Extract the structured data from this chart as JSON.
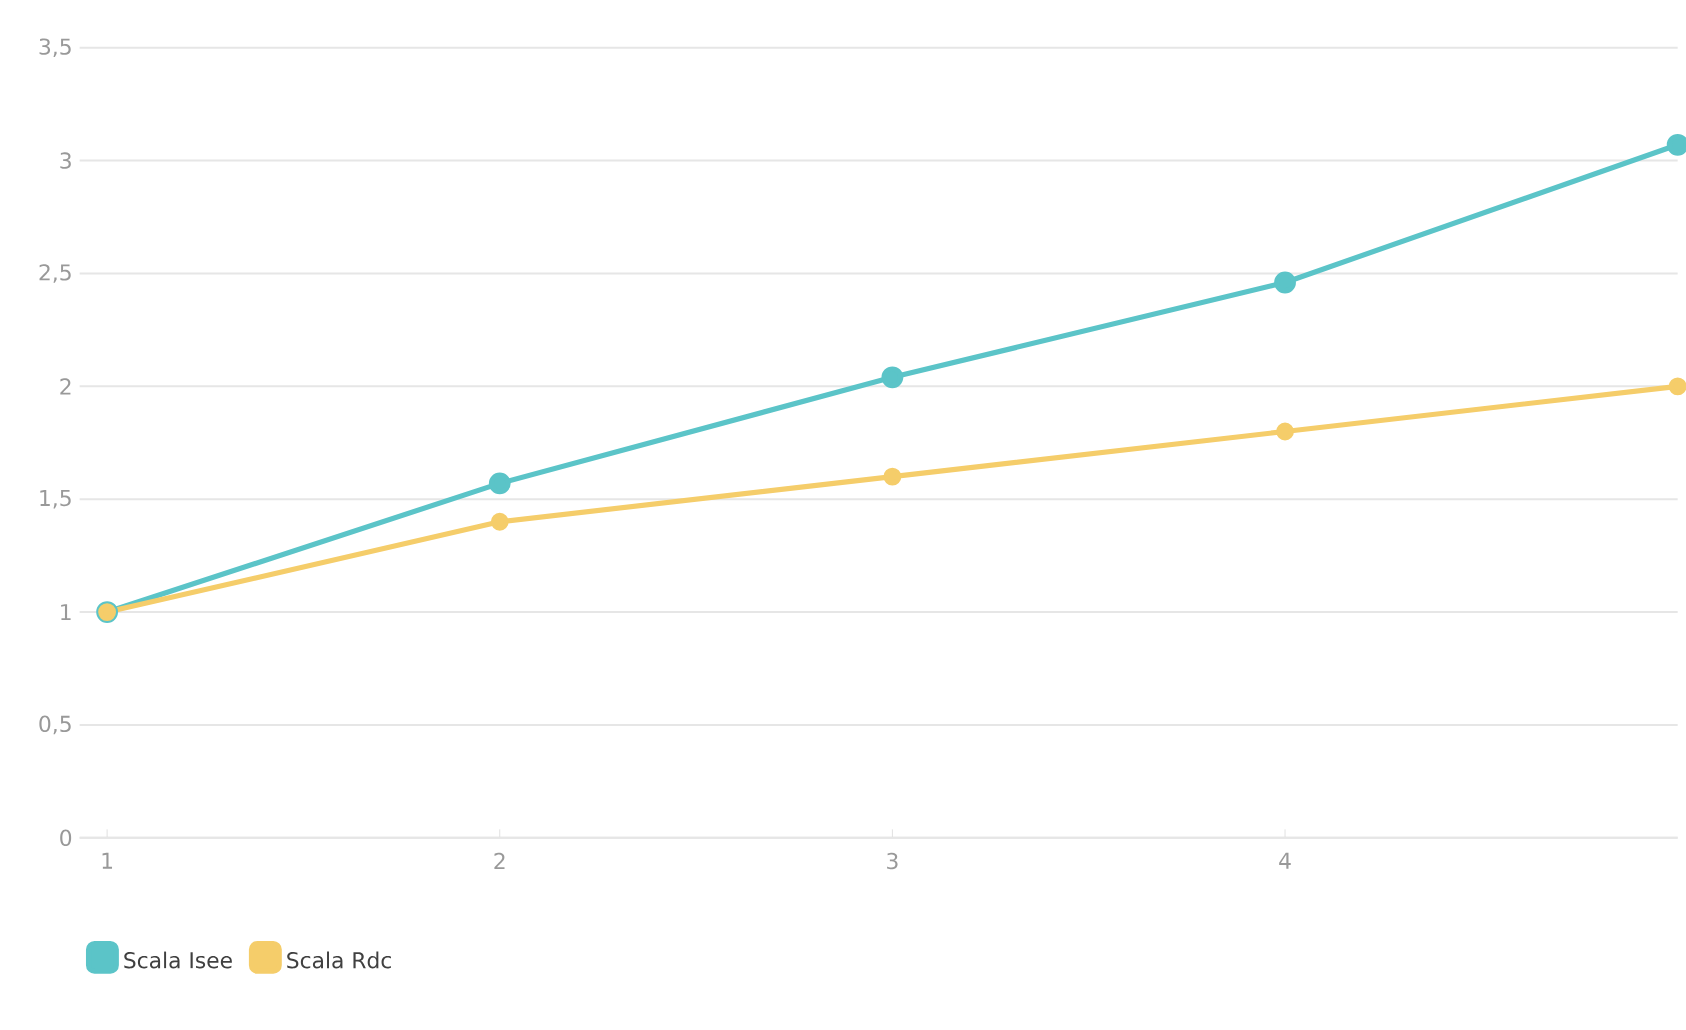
{
  "chart_data": {
    "type": "line",
    "x": [
      1,
      2,
      3,
      4,
      5
    ],
    "series": [
      {
        "name": "Scala Isee",
        "color": "#5bc4c8",
        "values": [
          1,
          1.57,
          2.04,
          2.46,
          3.07
        ]
      },
      {
        "name": "Scala Rdc",
        "color": "#f5cd6a",
        "values": [
          1,
          1.4,
          1.6,
          1.8,
          2.0
        ]
      }
    ],
    "xlim": [
      0.93,
      5
    ],
    "ylim": [
      0,
      3.5
    ],
    "xticks": [
      1,
      2,
      3,
      4
    ],
    "yticks": [
      {
        "value": 0,
        "label": "0"
      },
      {
        "value": 0.5,
        "label": "0,5"
      },
      {
        "value": 1,
        "label": "1"
      },
      {
        "value": 1.5,
        "label": "1,5"
      },
      {
        "value": 2,
        "label": "2"
      },
      {
        "value": 2.5,
        "label": "2,5"
      },
      {
        "value": 3,
        "label": "3"
      },
      {
        "value": 3.5,
        "label": "3,5"
      }
    ],
    "grid": "y",
    "legend": "bottom left",
    "marker": "circle",
    "line_style": "solid"
  }
}
